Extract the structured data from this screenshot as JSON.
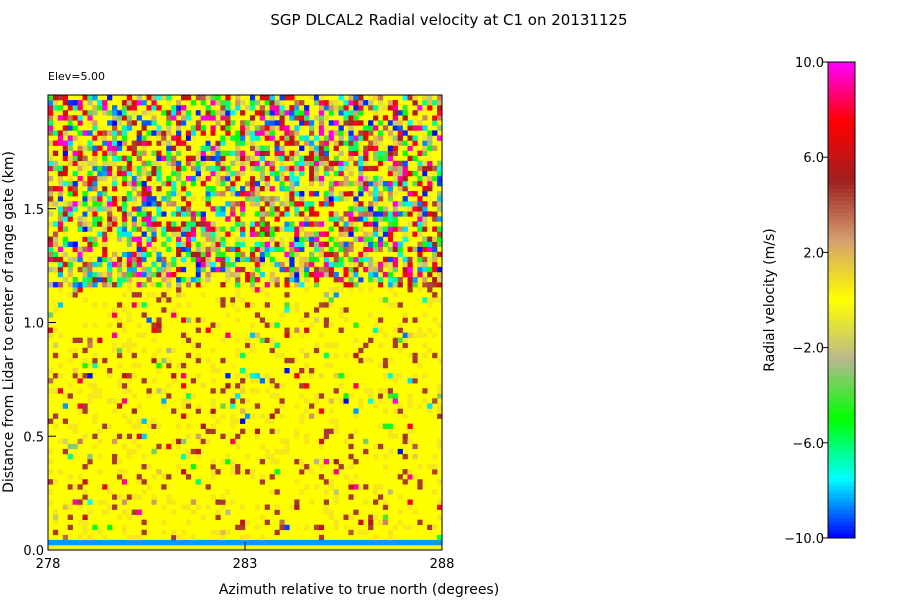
{
  "chart_data": {
    "type": "heatmap",
    "title": "SGP DLCAL2 Radial velocity at C1 on 20131125",
    "annotation": "Elev=5.00",
    "xlabel": "Azimuth relative to true north (degrees)",
    "ylabel": "Distance from Lidar to center of range gate (km)",
    "xlim": [
      278,
      288
    ],
    "ylim": [
      0.0,
      2.0
    ],
    "x_ticks": [
      "278",
      "283",
      "288"
    ],
    "y_ticks": [
      "0.0",
      "0.5",
      "1.0",
      "1.5"
    ],
    "colorbar": {
      "label": "Radial velocity (m/s)",
      "range": [
        -10.0,
        10.0
      ],
      "ticks": [
        "10.0",
        "6.0",
        "2.0",
        "−2.0",
        "−6.0",
        "−10.0"
      ],
      "colors": [
        "#0000ff",
        "#00ffff",
        "#00ff00",
        "#b8b890",
        "#ffff00",
        "#d4a070",
        "#a02020",
        "#ff0000",
        "#ff00ff"
      ]
    },
    "description_of_field": {
      "dominant_value_below_1.2km": 2.0,
      "noisy_speckle_above_1.2km": true,
      "near_range_bottom_band_value": -8.5
    }
  }
}
